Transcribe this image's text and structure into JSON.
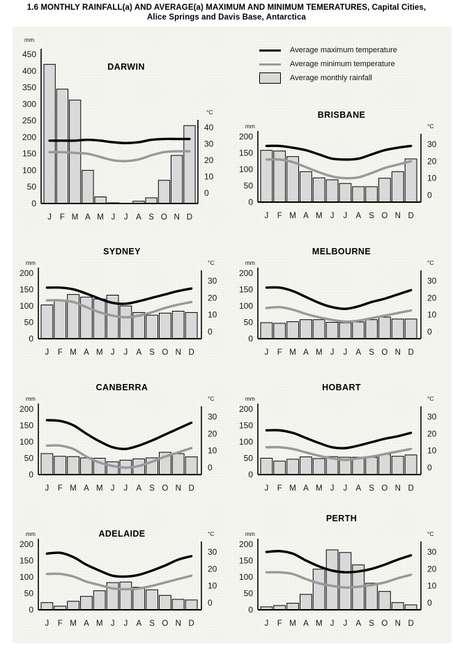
{
  "title_line1": "1.6 MONTHLY RAINFALL(a) AND AVERAGE(a) MAXIMUM AND MINIMUM TEMERATURES, Capital Cities,",
  "title_line2": "Alice Springs and Davis Base, Antarctica",
  "legend": {
    "max_temp": "Average maximum temperature",
    "min_temp": "Average minimum temperature",
    "rainfall": "Average monthly rainfall"
  },
  "colors": {
    "max_temp_line": "#000000",
    "min_temp_line": "#999999",
    "bar_fill": "#d9d9d9",
    "bar_border": "#000000",
    "panel_bg": "#f5f5f0",
    "text": "#111111"
  },
  "months": [
    "J",
    "F",
    "M",
    "A",
    "M",
    "J",
    "J",
    "A",
    "S",
    "O",
    "N",
    "D"
  ],
  "chart_data": [
    {
      "type": "bar",
      "city": "DARWIN",
      "left_axis": {
        "unit": "mm",
        "min": 0,
        "max": 450,
        "step": 50
      },
      "right_axis": {
        "unit": "°C",
        "min": 0,
        "max": 40,
        "step": 10
      },
      "rainfall_mm": [
        420,
        345,
        312,
        100,
        20,
        2,
        1,
        7,
        17,
        70,
        145,
        235
      ],
      "max_temp_c": [
        32,
        32,
        32,
        32.5,
        32,
        31,
        30.5,
        31,
        32.5,
        33,
        33,
        33
      ],
      "min_temp_c": [
        25,
        25,
        24.5,
        24,
        22,
        20,
        19.5,
        20.5,
        23,
        25,
        25.5,
        25.5
      ]
    },
    {
      "type": "bar",
      "city": "BRISBANE",
      "left_axis": {
        "unit": "mm",
        "min": 0,
        "max": 200,
        "step": 50
      },
      "right_axis": {
        "unit": "°C",
        "min": 0,
        "max": 30,
        "step": 10
      },
      "rainfall_mm": [
        158,
        156,
        139,
        93,
        74,
        68,
        57,
        47,
        47,
        73,
        93,
        132
      ],
      "max_temp_c": [
        29,
        29,
        28,
        26.5,
        24,
        21.5,
        21,
        21.5,
        24,
        26.5,
        28,
        29
      ],
      "min_temp_c": [
        21,
        21,
        19.5,
        16.5,
        13.5,
        11,
        10,
        10.5,
        13,
        16,
        18,
        20
      ]
    },
    {
      "type": "bar",
      "city": "SYDNEY",
      "left_axis": {
        "unit": "mm",
        "min": 0,
        "max": 200,
        "step": 50
      },
      "right_axis": {
        "unit": "°C",
        "min": 0,
        "max": 30,
        "step": 10
      },
      "rainfall_mm": [
        103,
        117,
        135,
        127,
        121,
        133,
        100,
        80,
        72,
        78,
        84,
        80
      ],
      "max_temp_c": [
        26,
        26,
        25,
        22.5,
        19.5,
        17,
        16.5,
        18,
        20,
        22,
        24,
        25.5
      ],
      "min_temp_c": [
        18.5,
        18.5,
        17.5,
        14.5,
        11.5,
        9.5,
        8.5,
        9.5,
        11.5,
        14,
        16,
        17.5
      ]
    },
    {
      "type": "bar",
      "city": "MELBOURNE",
      "left_axis": {
        "unit": "mm",
        "min": 0,
        "max": 200,
        "step": 50
      },
      "right_axis": {
        "unit": "°C",
        "min": 0,
        "max": 30,
        "step": 10
      },
      "rainfall_mm": [
        49,
        47,
        52,
        58,
        58,
        50,
        49,
        51,
        58,
        66,
        60,
        60
      ],
      "max_temp_c": [
        26,
        26,
        24,
        20.5,
        17,
        14.5,
        13.5,
        15,
        17.5,
        19.5,
        22,
        24.5
      ],
      "min_temp_c": [
        14,
        14.5,
        13,
        10.5,
        8.5,
        7,
        6,
        6.5,
        8,
        9.5,
        11,
        12.5
      ]
    },
    {
      "type": "bar",
      "city": "CANBERRA",
      "left_axis": {
        "unit": "mm",
        "min": 0,
        "max": 200,
        "step": 50
      },
      "right_axis": {
        "unit": "°C",
        "min": 0,
        "max": 30,
        "step": 10
      },
      "rainfall_mm": [
        64,
        56,
        55,
        51,
        50,
        39,
        44,
        48,
        51,
        68,
        64,
        54
      ],
      "max_temp_c": [
        28,
        27.5,
        25,
        20,
        15.5,
        12,
        11,
        13,
        16,
        19.5,
        23,
        26.5
      ],
      "min_temp_c": [
        13,
        13,
        11,
        6.5,
        3,
        1,
        0,
        1,
        3.5,
        6.5,
        9,
        11.5
      ]
    },
    {
      "type": "bar",
      "city": "HOBART",
      "left_axis": {
        "unit": "mm",
        "min": 0,
        "max": 200,
        "step": 50
      },
      "right_axis": {
        "unit": "°C",
        "min": 0,
        "max": 30,
        "step": 10
      },
      "rainfall_mm": [
        50,
        41,
        47,
        54,
        49,
        55,
        53,
        53,
        53,
        62,
        56,
        60
      ],
      "max_temp_c": [
        22,
        22,
        20.5,
        17.5,
        14.5,
        12,
        11.5,
        13,
        15,
        17,
        18.5,
        20.5
      ],
      "min_temp_c": [
        12,
        12,
        11,
        9,
        7,
        5.5,
        4.5,
        5.5,
        6.5,
        8,
        9.5,
        11
      ]
    },
    {
      "type": "bar",
      "city": "ADELAIDE",
      "left_axis": {
        "unit": "mm",
        "min": 0,
        "max": 200,
        "step": 50
      },
      "right_axis": {
        "unit": "°C",
        "min": 0,
        "max": 30,
        "step": 10
      },
      "rainfall_mm": [
        22,
        11,
        26,
        41,
        58,
        83,
        85,
        69,
        61,
        44,
        32,
        30
      ],
      "max_temp_c": [
        29,
        29.5,
        27,
        22.5,
        19,
        16,
        15.5,
        16.5,
        19,
        22,
        25.5,
        27.5
      ],
      "min_temp_c": [
        17,
        17,
        15.5,
        12.5,
        10.5,
        8.5,
        8,
        8.5,
        10,
        12,
        14,
        16
      ]
    },
    {
      "type": "bar",
      "city": "PERTH",
      "left_axis": {
        "unit": "mm",
        "min": 0,
        "max": 200,
        "step": 50
      },
      "right_axis": {
        "unit": "°C",
        "min": 0,
        "max": 30,
        "step": 10
      },
      "rainfall_mm": [
        9,
        13,
        20,
        47,
        124,
        183,
        175,
        137,
        81,
        56,
        22,
        15
      ],
      "max_temp_c": [
        30,
        30.5,
        29,
        25,
        21.5,
        19,
        18,
        18.5,
        20,
        22.5,
        25.5,
        28
      ],
      "min_temp_c": [
        18,
        18,
        17,
        14,
        11.5,
        10,
        9,
        9.5,
        10.5,
        12,
        14.5,
        16.5
      ]
    }
  ]
}
